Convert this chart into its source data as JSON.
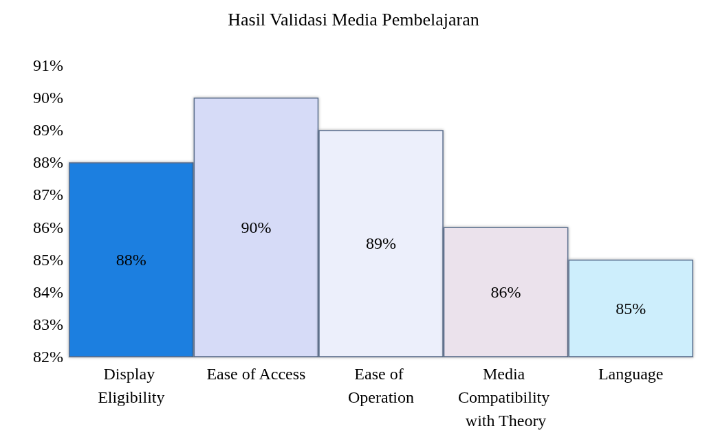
{
  "chart_data": {
    "type": "bar",
    "title": "Hasil Validasi Media Pembelajaran",
    "categories": [
      "Display Eligibility",
      "Ease of Access",
      "Ease of Operation",
      "Media Compatibility with Theory",
      "Language"
    ],
    "values": [
      88,
      90,
      89,
      86,
      85
    ],
    "colors": [
      "#1a7fe0",
      "#d6dbf7",
      "#eceffb",
      "#ebe2ec",
      "#cdeefc"
    ],
    "value_labels": [
      "88%",
      "90%",
      "89%",
      "86%",
      "85%"
    ],
    "ylim": [
      82,
      91
    ],
    "yticks": [
      {
        "value": 82,
        "label": "82%"
      },
      {
        "value": 83,
        "label": "83%"
      },
      {
        "value": 84,
        "label": "84%"
      },
      {
        "value": 85,
        "label": "85%"
      },
      {
        "value": 86,
        "label": "86%"
      },
      {
        "value": 87,
        "label": "87%"
      },
      {
        "value": 88,
        "label": "88%"
      },
      {
        "value": 89,
        "label": "89%"
      },
      {
        "value": 90,
        "label": "90%"
      },
      {
        "value": 91,
        "label": "91%"
      }
    ],
    "grid": false
  }
}
